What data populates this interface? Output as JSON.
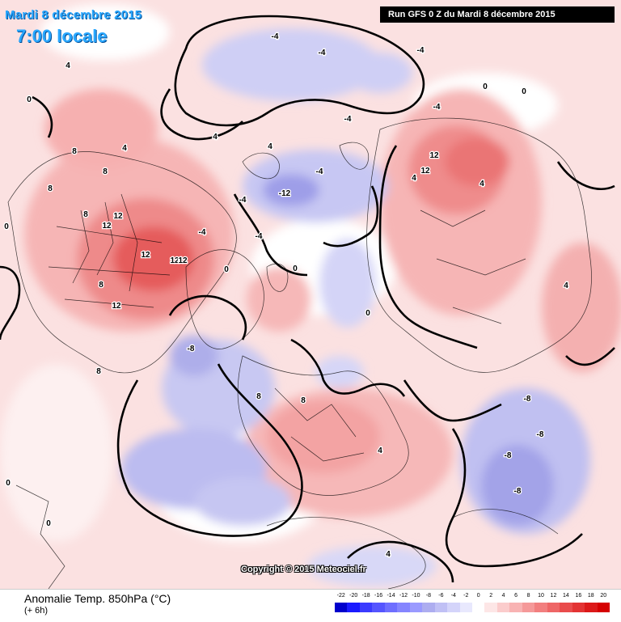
{
  "header": {
    "date": "Mardi 8 décembre 2015",
    "time": "7:00 locale",
    "run": "Run GFS 0 Z du Mardi 8 décembre 2015"
  },
  "copyright": "Copyright © 2015 Meteociel.fr",
  "legend": {
    "title": "Anomalie Temp. 850hPa (°C)",
    "subtitle": "(+ 6h)",
    "ticks": [
      "-22",
      "-20",
      "-18",
      "-16",
      "-14",
      "-12",
      "-10",
      "-8",
      "-6",
      "-4",
      "-2",
      "0",
      "2",
      "4",
      "6",
      "8",
      "10",
      "12",
      "14",
      "16",
      "18",
      "20"
    ],
    "colors": [
      "#0000cc",
      "#1a1aff",
      "#3b3bff",
      "#5555ff",
      "#6e6eff",
      "#8585ff",
      "#9a9aff",
      "#adadf0",
      "#c0c0f5",
      "#d4d4fa",
      "#e8e8fd",
      "#ffffff",
      "#fde6e6",
      "#fbcccc",
      "#f8b3b3",
      "#f59999",
      "#f27f7f",
      "#ee6666",
      "#e94c4c",
      "#e33333",
      "#dc1919",
      "#d50000"
    ]
  },
  "map": {
    "colors": {
      "warm_light": "#f9d2d2",
      "warm_mid": "#f3a4a4",
      "warm_strong": "#ec7474",
      "warm_core": "#e55555",
      "cold_light": "#d6d6f7",
      "cold_mid": "#b8b8f0",
      "cold_strong": "#9e9ee8",
      "neutral": "#ffffff",
      "contour": "#000000"
    },
    "labels": [
      {
        "text": "-4",
        "kind": "cold"
      },
      {
        "text": "-4",
        "kind": "cold"
      },
      {
        "text": "-4",
        "kind": "cold"
      },
      {
        "text": "-4",
        "kind": "cold"
      },
      {
        "text": "-4",
        "kind": "cold"
      },
      {
        "text": "-4",
        "kind": "cold"
      },
      {
        "text": "-4",
        "kind": "cold"
      },
      {
        "text": "-4",
        "kind": "cold"
      },
      {
        "text": "-4",
        "kind": "cold"
      },
      {
        "text": "-8",
        "kind": "cold"
      },
      {
        "text": "-8",
        "kind": "cold"
      },
      {
        "text": "-8",
        "kind": "cold"
      },
      {
        "text": "-8",
        "kind": "cold"
      },
      {
        "text": "-8",
        "kind": "cold"
      },
      {
        "text": "-12",
        "kind": "cold"
      },
      {
        "text": "0",
        "kind": "zero"
      },
      {
        "text": "0",
        "kind": "zero"
      },
      {
        "text": "0",
        "kind": "zero"
      },
      {
        "text": "0",
        "kind": "zero"
      },
      {
        "text": "0",
        "kind": "zero"
      },
      {
        "text": "0",
        "kind": "zero"
      },
      {
        "text": "0",
        "kind": "zero"
      },
      {
        "text": "0",
        "kind": "zero"
      },
      {
        "text": "0",
        "kind": "zero"
      },
      {
        "text": "4",
        "kind": "warm"
      },
      {
        "text": "4",
        "kind": "warm"
      },
      {
        "text": "4",
        "kind": "warm"
      },
      {
        "text": "4",
        "kind": "warm"
      },
      {
        "text": "4",
        "kind": "warm"
      },
      {
        "text": "4",
        "kind": "warm"
      },
      {
        "text": "4",
        "kind": "warm"
      },
      {
        "text": "4",
        "kind": "warm"
      },
      {
        "text": "4",
        "kind": "warm"
      },
      {
        "text": "8",
        "kind": "warm"
      },
      {
        "text": "8",
        "kind": "warm"
      },
      {
        "text": "8",
        "kind": "warm"
      },
      {
        "text": "8",
        "kind": "warm"
      },
      {
        "text": "8",
        "kind": "warm"
      },
      {
        "text": "8",
        "kind": "warm"
      },
      {
        "text": "8",
        "kind": "warm"
      },
      {
        "text": "8",
        "kind": "warm"
      },
      {
        "text": "12",
        "kind": "warm"
      },
      {
        "text": "12",
        "kind": "warm"
      },
      {
        "text": "12",
        "kind": "warm"
      },
      {
        "text": "12",
        "kind": "warm"
      },
      {
        "text": "12",
        "kind": "warm"
      },
      {
        "text": "12",
        "kind": "warm"
      },
      {
        "text": "12",
        "kind": "warm"
      },
      {
        "text": "12",
        "kind": "warm"
      }
    ]
  }
}
